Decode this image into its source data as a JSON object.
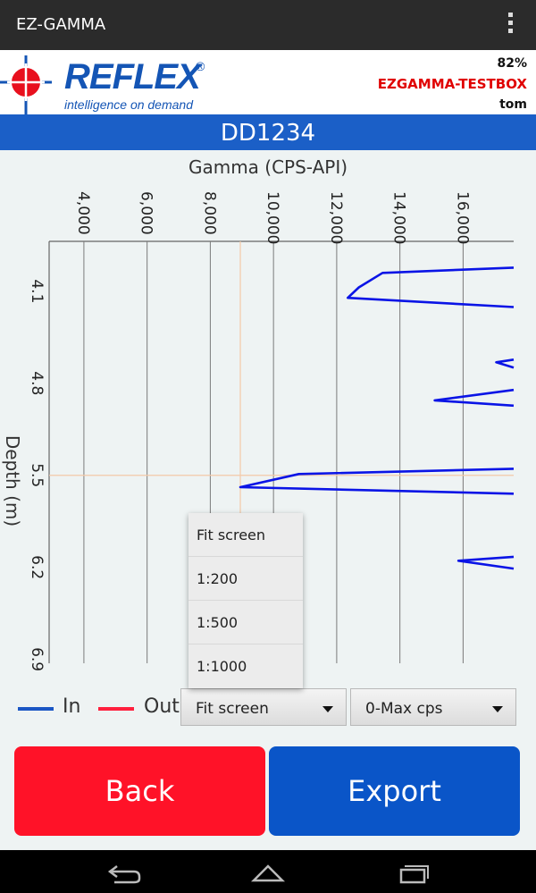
{
  "app": {
    "title": "EZ-GAMMA"
  },
  "header": {
    "brand": "REFLEX",
    "brand_mark": "®",
    "tagline": "intelligence on demand",
    "battery": "82%",
    "device": "EZGAMMA-TESTBOX",
    "user": "tom"
  },
  "hole_id": "DD1234",
  "colors": {
    "in": "#1a56c4",
    "out": "#ff1f3d",
    "trace": "#0a14e6",
    "banner": "#1b5fc7",
    "back_button": "#ff1228",
    "export_button": "#0a55c8"
  },
  "chart_data": {
    "type": "line",
    "title": "Gamma (CPS-API)",
    "xlabel": "Gamma (CPS-API)",
    "ylabel": "Depth (m)",
    "x_ticks": [
      "4,000",
      "6,000",
      "8,000",
      "10,000",
      "12,000",
      "14,000",
      "16,000"
    ],
    "x_tick_values": [
      4000,
      6000,
      8000,
      10000,
      12000,
      14000,
      16000
    ],
    "y_ticks": [
      "4.1",
      "4.8",
      "5.5",
      "6.2",
      "6.9"
    ],
    "y_tick_values": [
      4.1,
      4.8,
      5.5,
      6.2,
      6.9
    ],
    "xlim": [
      2900,
      17600
    ],
    "ylim": [
      3.72,
      6.93
    ],
    "grid": true,
    "cursor": {
      "gamma": 8950,
      "depth": 5.5
    },
    "series": [
      {
        "name": "In",
        "points": [
          [
            17600,
            3.92
          ],
          [
            13450,
            3.96
          ],
          [
            12700,
            4.07
          ],
          [
            12350,
            4.15
          ],
          [
            17600,
            4.22
          ],
          [
            null,
            null
          ],
          [
            17600,
            4.68
          ],
          [
            17050,
            4.64
          ],
          [
            17600,
            4.62
          ],
          [
            null,
            null
          ],
          [
            17600,
            4.85
          ],
          [
            15100,
            4.93
          ],
          [
            17600,
            4.97
          ],
          [
            null,
            null
          ],
          [
            17600,
            5.45
          ],
          [
            10800,
            5.49
          ],
          [
            8950,
            5.59
          ],
          [
            17600,
            5.64
          ],
          [
            null,
            null
          ],
          [
            17600,
            6.12
          ],
          [
            15850,
            6.15
          ],
          [
            17600,
            6.21
          ]
        ]
      }
    ]
  },
  "legend": {
    "in_label": "In",
    "out_label": "Out"
  },
  "scale_select": {
    "value": "Fit screen",
    "options": [
      "Fit screen",
      "1:200",
      "1:500",
      "1:1000"
    ]
  },
  "range_select": {
    "value": "0-Max cps"
  },
  "buttons": {
    "back": "Back",
    "export": "Export"
  }
}
